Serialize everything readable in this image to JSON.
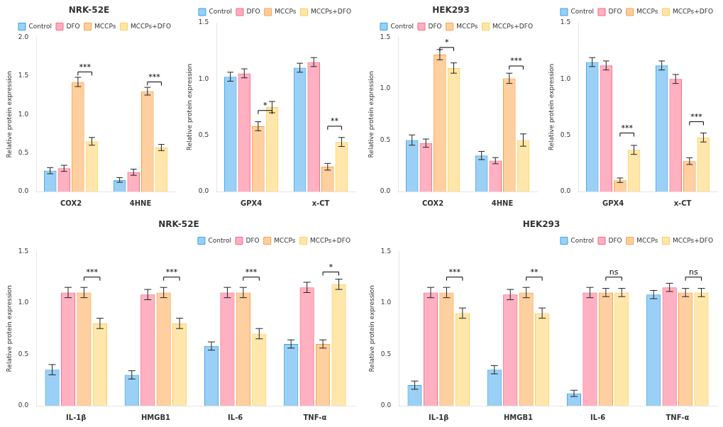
{
  "chart_data": [
    {
      "type": "bar",
      "title": "NRK-52E",
      "categories": [
        "COX2",
        "4HNE"
      ],
      "series": [
        {
          "name": "Control",
          "values": [
            0.27,
            0.15
          ],
          "errors": [
            0.04,
            0.03
          ]
        },
        {
          "name": "DFO",
          "values": [
            0.3,
            0.25
          ],
          "errors": [
            0.04,
            0.04
          ]
        },
        {
          "name": "MCCPs",
          "values": [
            1.42,
            1.3
          ],
          "errors": [
            0.06,
            0.05
          ]
        },
        {
          "name": "MCCPs+DFO",
          "values": [
            0.65,
            0.57
          ],
          "errors": [
            0.05,
            0.04
          ]
        }
      ],
      "ylabel": "Relative protein expression",
      "ylim": [
        0,
        2.0
      ],
      "yticks": [
        {
          "value": 0.0,
          "label": "0.0"
        },
        0.5,
        {
          "value": 1.0,
          "label": "1.0"
        },
        1.5,
        {
          "value": 2.0,
          "label": "2.0"
        }
      ],
      "grid": false,
      "legend": "upper right",
      "annotations": [
        {
          "category": "COX2",
          "from": "MCCPs",
          "to": "MCCPs+DFO",
          "text": "***",
          "y": 1.55
        },
        {
          "category": "4HNE",
          "from": "MCCPs",
          "to": "MCCPs+DFO",
          "text": "***",
          "y": 1.42
        }
      ]
    },
    {
      "type": "bar",
      "categories": [
        "GPX4",
        "x-CT"
      ],
      "series": [
        {
          "name": "Control",
          "values": [
            1.02,
            1.1
          ],
          "errors": [
            0.04,
            0.04
          ]
        },
        {
          "name": "DFO",
          "values": [
            1.05,
            1.15
          ],
          "errors": [
            0.04,
            0.04
          ]
        },
        {
          "name": "MCCPs",
          "values": [
            0.58,
            0.22
          ],
          "errors": [
            0.04,
            0.03
          ]
        },
        {
          "name": "MCCPs+DFO",
          "values": [
            0.75,
            0.44
          ],
          "errors": [
            0.05,
            0.04
          ]
        }
      ],
      "ylabel": "Relative protein expression",
      "ylim": [
        0,
        1.5
      ],
      "yticks": [
        {
          "value": 0.0,
          "label": "0.0"
        },
        0.5,
        {
          "value": 1.0,
          "label": "1.0"
        },
        1.5
      ],
      "grid": false,
      "legend": "upper right",
      "annotations": [
        {
          "category": "GPX4",
          "from": "MCCPs",
          "to": "MCCPs+DFO",
          "text": "*",
          "y": 0.72
        },
        {
          "category": "x-CT",
          "from": "MCCPs",
          "to": "MCCPs+DFO",
          "text": "**",
          "y": 0.58
        }
      ]
    },
    {
      "type": "bar",
      "title": "HEK293",
      "categories": [
        "COX2",
        "4HNE"
      ],
      "series": [
        {
          "name": "Control",
          "values": [
            0.5,
            0.35
          ],
          "errors": [
            0.05,
            0.04
          ]
        },
        {
          "name": "DFO",
          "values": [
            0.47,
            0.3
          ],
          "errors": [
            0.04,
            0.03
          ]
        },
        {
          "name": "MCCPs",
          "values": [
            1.33,
            1.1
          ],
          "errors": [
            0.05,
            0.05
          ]
        },
        {
          "name": "MCCPs+DFO",
          "values": [
            1.2,
            0.5
          ],
          "errors": [
            0.05,
            0.06
          ]
        }
      ],
      "ylabel": "Relative protein expression",
      "ylim": [
        0,
        1.5
      ],
      "yticks": [
        {
          "value": 0.0,
          "label": "0.0"
        },
        0.5,
        {
          "value": 1.0,
          "label": "1.0"
        },
        1.5
      ],
      "grid": false,
      "legend": "upper right",
      "annotations": [
        {
          "category": "COX2",
          "from": "MCCPs",
          "to": "MCCPs+DFO",
          "text": "*",
          "y": 1.4
        },
        {
          "category": "4HNE",
          "from": "MCCPs",
          "to": "MCCPs+DFO",
          "text": "***",
          "y": 1.22
        }
      ]
    },
    {
      "type": "bar",
      "categories": [
        "GPX4",
        "x-CT"
      ],
      "series": [
        {
          "name": "Control",
          "values": [
            1.15,
            1.12
          ],
          "errors": [
            0.04,
            0.04
          ]
        },
        {
          "name": "DFO",
          "values": [
            1.12,
            1.0
          ],
          "errors": [
            0.04,
            0.04
          ]
        },
        {
          "name": "MCCPs",
          "values": [
            0.1,
            0.27
          ],
          "errors": [
            0.02,
            0.03
          ]
        },
        {
          "name": "MCCPs+DFO",
          "values": [
            0.37,
            0.48
          ],
          "errors": [
            0.04,
            0.04
          ]
        }
      ],
      "ylabel": "Relative protein expression",
      "ylim": [
        0,
        1.5
      ],
      "yticks": [
        {
          "value": 0.0,
          "label": "0.0"
        },
        0.5,
        {
          "value": 1.0,
          "label": "1.0"
        },
        1.5
      ],
      "grid": false,
      "legend": "upper right",
      "annotations": [
        {
          "category": "GPX4",
          "from": "MCCPs",
          "to": "MCCPs+DFO",
          "text": "***",
          "y": 0.52
        },
        {
          "category": "x-CT",
          "from": "MCCPs",
          "to": "MCCPs+DFO",
          "text": "***",
          "y": 0.62
        }
      ]
    },
    {
      "type": "bar",
      "title": "NRK-52E",
      "categories": [
        "IL-1β",
        "HMGB1",
        "IL-6",
        "TNF-α"
      ],
      "series": [
        {
          "name": "Control",
          "values": [
            0.35,
            0.3,
            0.58,
            0.6
          ],
          "errors": [
            0.05,
            0.04,
            0.04,
            0.04
          ]
        },
        {
          "name": "DFO",
          "values": [
            1.1,
            1.08,
            1.1,
            1.15
          ],
          "errors": [
            0.05,
            0.05,
            0.05,
            0.05
          ]
        },
        {
          "name": "MCCPs",
          "values": [
            1.1,
            1.1,
            1.1,
            0.6
          ],
          "errors": [
            0.05,
            0.05,
            0.05,
            0.04
          ]
        },
        {
          "name": "MCCPs+DFO",
          "values": [
            0.8,
            0.8,
            0.7,
            1.18
          ],
          "errors": [
            0.05,
            0.05,
            0.05,
            0.05
          ]
        }
      ],
      "ylabel": "Relative protein expression",
      "ylim": [
        0,
        1.5
      ],
      "yticks": [
        {
          "value": 0.0,
          "label": "0.0"
        },
        0.5,
        {
          "value": 1.0,
          "label": "1.0"
        },
        1.5
      ],
      "grid": false,
      "legend": "upper right",
      "annotations": [
        {
          "category": "IL-1β",
          "from": "MCCPs",
          "to": "MCCPs+DFO",
          "text": "***",
          "y": 1.25
        },
        {
          "category": "HMGB1",
          "from": "MCCPs",
          "to": "MCCPs+DFO",
          "text": "***",
          "y": 1.25
        },
        {
          "category": "IL-6",
          "from": "MCCPs",
          "to": "MCCPs+DFO",
          "text": "***",
          "y": 1.25
        },
        {
          "category": "TNF-α",
          "from": "MCCPs",
          "to": "MCCPs+DFO",
          "text": "*",
          "y": 1.3
        }
      ]
    },
    {
      "type": "bar",
      "title": "HEK293",
      "categories": [
        "IL-1β",
        "HMGB1",
        "IL-6",
        "TNF-α"
      ],
      "series": [
        {
          "name": "Control",
          "values": [
            0.2,
            0.35,
            0.12,
            1.08
          ],
          "errors": [
            0.04,
            0.04,
            0.03,
            0.04
          ]
        },
        {
          "name": "DFO",
          "values": [
            1.1,
            1.08,
            1.1,
            1.15
          ],
          "errors": [
            0.05,
            0.05,
            0.05,
            0.04
          ]
        },
        {
          "name": "MCCPs",
          "values": [
            1.1,
            1.1,
            1.1,
            1.1
          ],
          "errors": [
            0.05,
            0.05,
            0.04,
            0.04
          ]
        },
        {
          "name": "MCCPs+DFO",
          "values": [
            0.9,
            0.9,
            1.1,
            1.1
          ],
          "errors": [
            0.05,
            0.05,
            0.04,
            0.04
          ]
        }
      ],
      "ylabel": "Relative protein expression",
      "ylim": [
        0,
        1.5
      ],
      "yticks": [
        {
          "value": 0.0,
          "label": "0.0"
        },
        0.5,
        {
          "value": 1.0,
          "label": "1.0"
        },
        1.5
      ],
      "grid": false,
      "legend": "upper right",
      "annotations": [
        {
          "category": "IL-1β",
          "from": "MCCPs",
          "to": "MCCPs+DFO",
          "text": "***",
          "y": 1.25
        },
        {
          "category": "HMGB1",
          "from": "MCCPs",
          "to": "MCCPs+DFO",
          "text": "**",
          "y": 1.25
        },
        {
          "category": "IL-6",
          "from": "MCCPs",
          "to": "MCCPs+DFO",
          "text": "ns",
          "y": 1.25
        },
        {
          "category": "TNF-α",
          "from": "MCCPs",
          "to": "MCCPs+DFO",
          "text": "ns",
          "y": 1.25
        }
      ]
    }
  ]
}
